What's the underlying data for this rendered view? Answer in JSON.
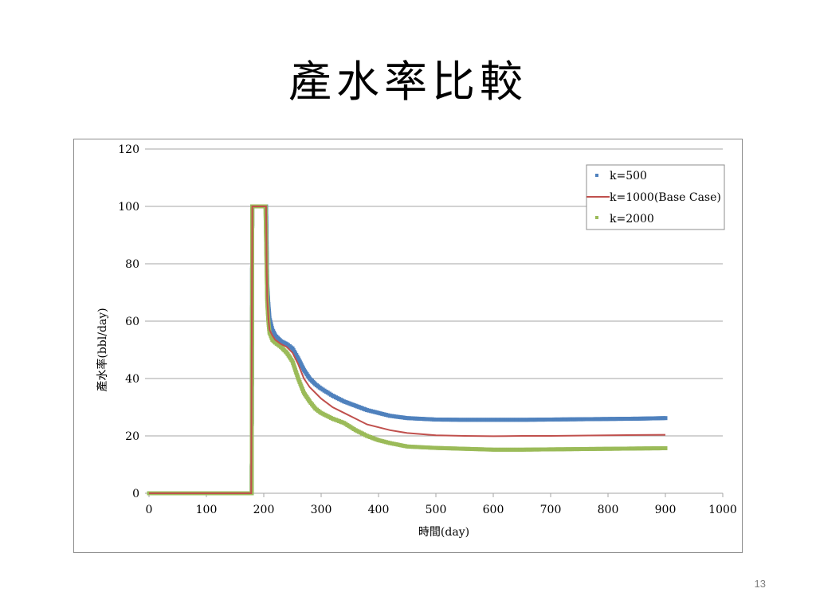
{
  "slide": {
    "title": "產水率比較",
    "page_number": "13"
  },
  "colors": {
    "series_1": "#4f81bd",
    "series_2": "#c0504d",
    "series_3": "#9bbb59",
    "gridline": "#a6a6a6",
    "frame": "#8c8c8c"
  },
  "chart_data": {
    "type": "line",
    "title": "",
    "xlabel": "時間(day)",
    "ylabel": "產水率(bbl/day)",
    "xlim": [
      0,
      1000
    ],
    "ylim": [
      0,
      120
    ],
    "x_ticks": [
      0,
      100,
      200,
      300,
      400,
      500,
      600,
      700,
      800,
      900,
      1000
    ],
    "y_ticks": [
      0,
      20,
      40,
      60,
      80,
      100,
      120
    ],
    "grid": "horizontal",
    "legend_position": "top-right",
    "series": [
      {
        "name": "k=500",
        "style": "markers",
        "x": [
          0,
          50,
          100,
          150,
          179,
          180,
          190,
          200,
          204,
          205,
          206,
          208,
          210,
          215,
          220,
          230,
          240,
          250,
          260,
          270,
          280,
          290,
          300,
          320,
          340,
          360,
          380,
          400,
          420,
          450,
          500,
          550,
          600,
          650,
          700,
          750,
          800,
          850,
          900
        ],
        "y": [
          0,
          0,
          0,
          0,
          0,
          100,
          100,
          100,
          100,
          87,
          73,
          66,
          61,
          57,
          55,
          53,
          52,
          50.5,
          47,
          43,
          40,
          38,
          36.5,
          34,
          32,
          30.5,
          29,
          28,
          27,
          26.2,
          25.7,
          25.6,
          25.6,
          25.6,
          25.7,
          25.8,
          25.9,
          26,
          26.2
        ]
      },
      {
        "name": "k=1000(Base Case)",
        "style": "line",
        "x": [
          0,
          50,
          100,
          150,
          178,
          179,
          180,
          190,
          200,
          204,
          205,
          206,
          208,
          210,
          215,
          220,
          230,
          240,
          250,
          260,
          270,
          280,
          290,
          300,
          320,
          340,
          360,
          380,
          400,
          420,
          450,
          500,
          550,
          600,
          650,
          700,
          750,
          800,
          850,
          900
        ],
        "y": [
          0,
          0,
          0,
          0,
          0,
          50,
          100,
          100,
          100,
          100,
          80,
          68,
          61,
          57,
          55,
          53.5,
          52,
          51,
          49,
          45,
          40,
          37,
          35,
          33,
          30,
          28,
          26,
          24,
          23,
          22,
          21,
          20.2,
          20,
          19.9,
          20,
          20,
          20.1,
          20.2,
          20.3,
          20.4
        ]
      },
      {
        "name": "k=2000",
        "style": "markers",
        "x": [
          0,
          50,
          100,
          150,
          179,
          180,
          190,
          200,
          203,
          204,
          205,
          206,
          208,
          210,
          215,
          220,
          230,
          240,
          250,
          260,
          270,
          280,
          290,
          300,
          320,
          340,
          360,
          380,
          400,
          420,
          450,
          500,
          550,
          600,
          650,
          700,
          750,
          800,
          850,
          900
        ],
        "y": [
          0,
          0,
          0,
          0,
          0,
          100,
          100,
          100,
          100,
          89,
          78,
          67,
          60,
          56,
          53.5,
          52.5,
          51,
          49,
          46,
          40,
          35,
          32,
          29.5,
          28,
          26,
          24.5,
          22,
          20,
          18.5,
          17.5,
          16.3,
          15.8,
          15.5,
          15.2,
          15.2,
          15.3,
          15.4,
          15.5,
          15.6,
          15.7
        ]
      }
    ]
  }
}
